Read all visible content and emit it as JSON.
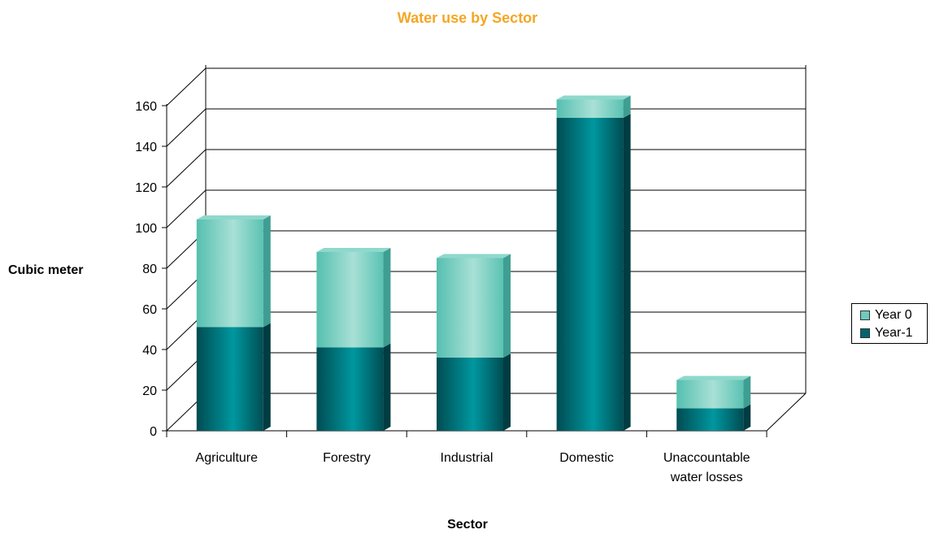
{
  "chart_data": {
    "type": "bar",
    "stacked": true,
    "style": "3d",
    "title": "Water use by Sector",
    "xlabel": "Sector",
    "ylabel": "Cubic meter",
    "ylim": [
      0,
      160
    ],
    "yticks": [
      "0",
      "20",
      "40",
      "60",
      "80",
      "100",
      "120",
      "140",
      "160"
    ],
    "categories": [
      "Agriculture",
      "Forestry",
      "Industrial",
      "Domestic",
      "Unaccountable water losses"
    ],
    "category_lines": [
      [
        "Agriculture"
      ],
      [
        "Forestry"
      ],
      [
        "Industrial"
      ],
      [
        "Domestic"
      ],
      [
        "Unaccountable",
        "water losses"
      ]
    ],
    "series": [
      {
        "name": "Year-1",
        "color": "#00666e",
        "values": [
          51,
          41,
          36,
          154,
          11
        ]
      },
      {
        "name": "Year 0",
        "color": "#6dcbbd",
        "values": [
          53,
          47,
          49,
          9,
          14
        ]
      }
    ],
    "legend": {
      "position": "right",
      "entries": [
        "Year 0",
        "Year-1"
      ]
    },
    "grid": true,
    "title_color": "#f5a623"
  }
}
